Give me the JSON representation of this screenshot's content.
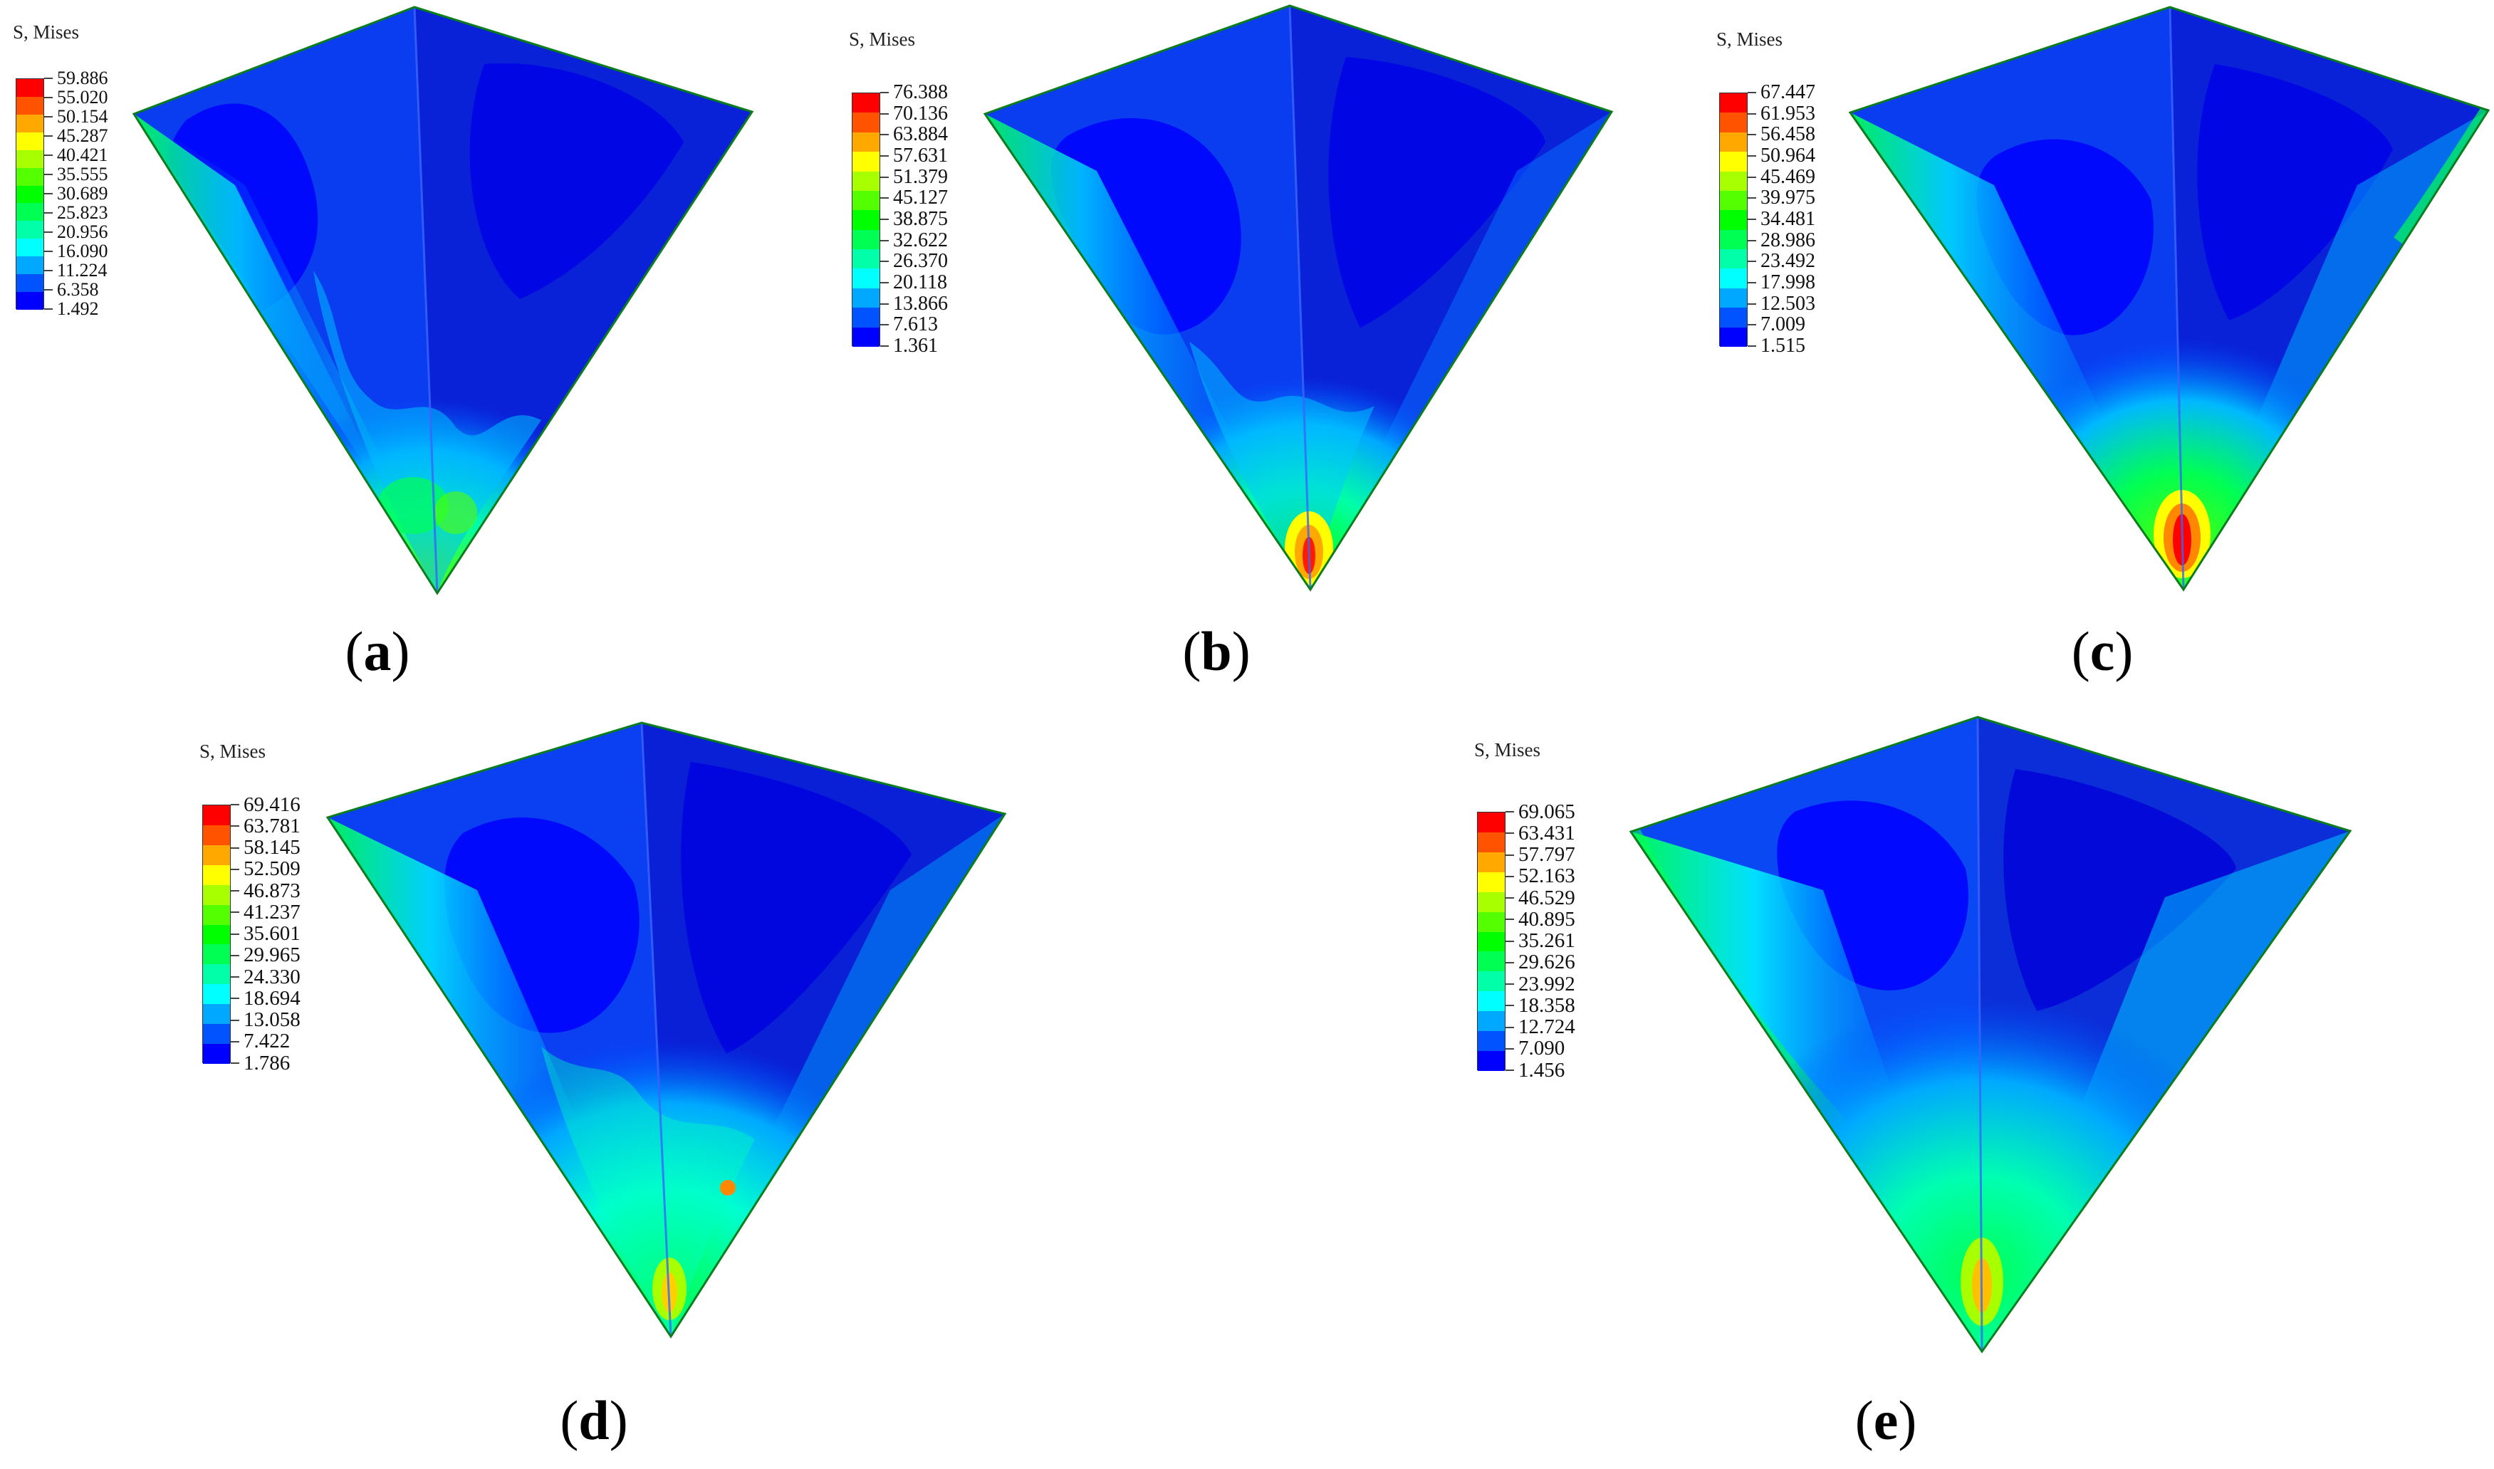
{
  "figure": {
    "colors": [
      "#0000ff",
      "#0053ff",
      "#00a8ff",
      "#00ffff",
      "#00ffa8",
      "#00ff53",
      "#00ff00",
      "#53ff00",
      "#a8ff00",
      "#ffff00",
      "#ffa800",
      "#ff5300",
      "#ff0000"
    ],
    "panels": [
      {
        "id": "a",
        "caption_letter": "a",
        "legend_title": "S, Mises",
        "legend_values": [
          "59.886",
          "55.020",
          "50.154",
          "45.287",
          "40.421",
          "35.555",
          "30.689",
          "25.823",
          "20.956",
          "16.090",
          "11.224",
          "6.358",
          "1.492"
        ]
      },
      {
        "id": "b",
        "caption_letter": "b",
        "legend_title": "S, Mises",
        "legend_values": [
          "76.388",
          "70.136",
          "63.884",
          "57.631",
          "51.379",
          "45.127",
          "38.875",
          "32.622",
          "26.370",
          "20.118",
          "13.866",
          "7.613",
          "1.361"
        ]
      },
      {
        "id": "c",
        "caption_letter": "c",
        "legend_title": "S, Mises",
        "legend_values": [
          "67.447",
          "61.953",
          "56.458",
          "50.964",
          "45.469",
          "39.975",
          "34.481",
          "28.986",
          "23.492",
          "17.998",
          "12.503",
          "7.009",
          "1.515"
        ]
      },
      {
        "id": "d",
        "caption_letter": "d",
        "legend_title": "S, Mises",
        "legend_values": [
          "69.416",
          "63.781",
          "58.145",
          "52.509",
          "46.873",
          "41.237",
          "35.601",
          "29.965",
          "24.330",
          "18.694",
          "13.058",
          "7.422",
          "1.786"
        ]
      },
      {
        "id": "e",
        "caption_letter": "e",
        "legend_title": "S, Mises",
        "legend_values": [
          "69.065",
          "63.431",
          "57.797",
          "52.163",
          "46.529",
          "40.895",
          "35.261",
          "29.626",
          "23.992",
          "18.358",
          "12.724",
          "7.090",
          "1.456"
        ]
      }
    ]
  }
}
